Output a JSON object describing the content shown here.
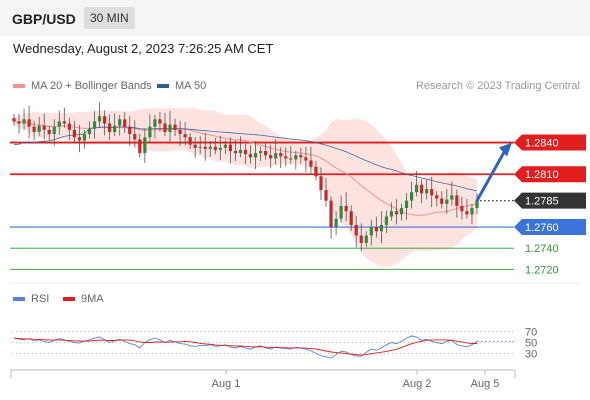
{
  "header": {
    "symbol": "GBP/USD",
    "timeframe": "30 MIN"
  },
  "datetime": "Wednesday, August 2, 2023 7:26:25 AM CET",
  "legend": {
    "items": [
      {
        "label": "MA 20 + Bollinger Bands",
        "color": "#f4928c"
      },
      {
        "label": "MA 50",
        "color": "#2f5d9a"
      }
    ],
    "credit": "Research © 2023 Trading Central"
  },
  "rsi_legend": [
    {
      "label": "RSI",
      "color": "#5b82d6"
    },
    {
      "label": "9MA",
      "color": "#e11d1d"
    }
  ],
  "chart_data": {
    "type": "candlestick",
    "y_range": [
      1.2708,
      1.2885
    ],
    "levels": [
      {
        "label": "1.2840",
        "value": 1.284,
        "kind": "resistance",
        "color": "#e11d1d"
      },
      {
        "label": "1.2810",
        "value": 1.281,
        "kind": "resistance",
        "color": "#e11d1d"
      },
      {
        "label": "1.2785",
        "value": 1.2785,
        "kind": "last",
        "color": "#333333"
      },
      {
        "label": "1.2760",
        "value": 1.276,
        "kind": "pivot",
        "color": "#3b73d9"
      },
      {
        "label": "1.2740",
        "value": 1.274,
        "kind": "support",
        "color": "#2e9a2e"
      },
      {
        "label": "1.2720",
        "value": 1.272,
        "kind": "support",
        "color": "#2e9a2e"
      }
    ],
    "x_labels": [
      "Aug 1",
      "Aug 2",
      "Aug 5"
    ],
    "forecast": {
      "from": 1.2785,
      "to": 1.284
    },
    "closes": [
      1.286,
      1.2858,
      1.2862,
      1.2855,
      1.285,
      1.2856,
      1.2852,
      1.2848,
      1.2855,
      1.286,
      1.2858,
      1.2852,
      1.2845,
      1.2842,
      1.2848,
      1.2853,
      1.286,
      1.2865,
      1.2858,
      1.285,
      1.2856,
      1.2862,
      1.2855,
      1.2848,
      1.2843,
      1.283,
      1.2845,
      1.2855,
      1.2862,
      1.2858,
      1.285,
      1.2857,
      1.2852,
      1.2848,
      1.2845,
      1.2838,
      1.2835,
      1.2836,
      1.2834,
      1.2836,
      1.2833,
      1.2835,
      1.2838,
      1.2832,
      1.283,
      1.2833,
      1.2829,
      1.2826,
      1.283,
      1.2832,
      1.2828,
      1.2825,
      1.283,
      1.2827,
      1.2825,
      1.2824,
      1.2828,
      1.2826,
      1.2823,
      1.2817,
      1.2808,
      1.2795,
      1.2785,
      1.276,
      1.2768,
      1.278,
      1.2775,
      1.2762,
      1.2752,
      1.2745,
      1.2752,
      1.276,
      1.2756,
      1.2762,
      1.277,
      1.2775,
      1.2772,
      1.2778,
      1.2785,
      1.2793,
      1.28,
      1.2792,
      1.2796,
      1.279,
      1.2787,
      1.2782,
      1.2786,
      1.279,
      1.278,
      1.2775,
      1.2772,
      1.2778,
      1.2785
    ],
    "rsi": {
      "levels": [
        70,
        50,
        30
      ],
      "values": [
        58,
        56,
        55,
        57,
        53,
        55,
        52,
        50,
        54,
        57,
        55,
        52,
        50,
        49,
        53,
        55,
        58,
        60,
        55,
        50,
        53,
        56,
        52,
        48,
        46,
        40,
        50,
        55,
        58,
        55,
        50,
        54,
        51,
        48,
        47,
        44,
        43,
        45,
        44,
        46,
        43,
        44,
        46,
        42,
        40,
        43,
        40,
        38,
        42,
        44,
        40,
        38,
        42,
        40,
        39,
        38,
        41,
        40,
        38,
        35,
        30,
        26,
        24,
        22,
        28,
        34,
        33,
        28,
        26,
        25,
        32,
        38,
        36,
        40,
        46,
        50,
        48,
        52,
        58,
        62,
        60,
        54,
        56,
        52,
        50,
        48,
        52,
        54,
        46,
        44,
        42,
        46,
        52
      ]
    }
  }
}
